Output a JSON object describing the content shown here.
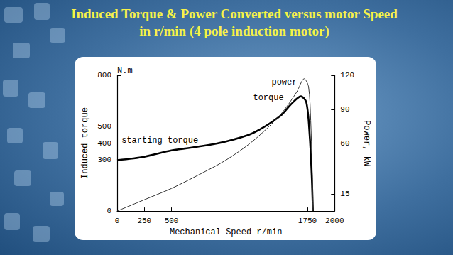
{
  "chart_data": {
    "type": "line",
    "title": "Induced Torque & Power Converted versus motor Speed in r/min (4 pole induction motor)",
    "xlabel": "Mechanical Speed r/min",
    "ylabel": "Induced torque",
    "y2label": "Power, kW",
    "xlim": [
      0,
      2000
    ],
    "xticks": [
      0,
      250,
      500,
      1750,
      2000
    ],
    "ylim": [
      0,
      800
    ],
    "yticks": [
      0,
      300,
      400,
      500,
      800
    ],
    "y2lim": [
      0,
      120
    ],
    "y2ticks": [
      15,
      60,
      90,
      120
    ],
    "grid": false,
    "series": [
      {
        "name": "torque",
        "color": "#000000",
        "line_style": "thick",
        "axis": "y",
        "x": [
          0,
          250,
          500,
          750,
          1000,
          1250,
          1500,
          1600,
          1690,
          1740,
          1770,
          1790,
          1800
        ],
        "values": [
          300,
          320,
          357,
          380,
          410,
          460,
          560,
          630,
          676,
          640,
          450,
          200,
          0
        ]
      },
      {
        "name": "power",
        "color": "#333333",
        "line_style": "thin",
        "axis": "y2",
        "x": [
          0,
          250,
          500,
          750,
          1000,
          1250,
          1500,
          1650,
          1720,
          1760,
          1780,
          1795,
          1800
        ],
        "values": [
          0,
          10,
          20,
          32,
          45,
          62,
          85,
          105,
          117,
          110,
          80,
          30,
          0
        ]
      }
    ],
    "annotations": [
      {
        "text": "N.m",
        "x": 0,
        "y": 800,
        "axis": "y"
      },
      {
        "text": "torque",
        "x": 1250,
        "y": 640,
        "axis": "y"
      },
      {
        "text": "power",
        "x": 1420,
        "y": 110,
        "axis": "y2"
      },
      {
        "text": "starting torque",
        "x": 40,
        "y": 390,
        "axis": "y"
      }
    ]
  }
}
